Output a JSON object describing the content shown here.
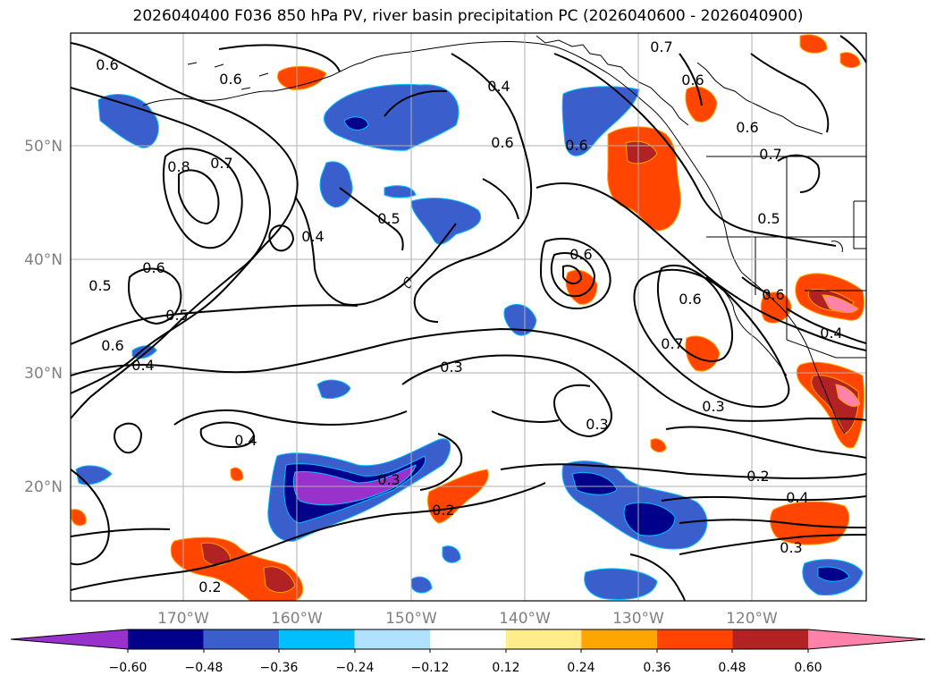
{
  "title": "2026040400 F036 850 hPa PV, river basin precipitation PC (2026040600 - 2026040900)",
  "lat_labels": [
    "50°N",
    "40°N",
    "30°N",
    "20°N"
  ],
  "lon_labels": [
    "170°W",
    "160°W",
    "150°W",
    "140°W",
    "130°W",
    "120°W"
  ],
  "contour_labels": [
    "0.6",
    "0.6",
    "0.7",
    "0.6",
    "0.4",
    "0.6",
    "0.8",
    "0.7",
    "0.4",
    "0.5",
    "0.6",
    "0.5",
    "0.5",
    "0.6",
    "0.4",
    "0.3",
    "0.4",
    "0.3",
    "0.3",
    "0.2",
    "0.6",
    "0.7",
    "0.6",
    "0.3",
    "0.2",
    "0.4",
    "0.3",
    "0.5",
    "0.6",
    "0.4",
    "0.2",
    "0.7",
    "0.6",
    "0.6"
  ],
  "colorbar": {
    "ticks": [
      "−0.60",
      "−0.48",
      "−0.36",
      "−0.24",
      "−0.12",
      "0.12",
      "0.24",
      "0.36",
      "0.48",
      "0.60"
    ],
    "colors": [
      "#9932cc",
      "#00008b",
      "#3a5fcd",
      "#00bfff",
      "#b0e2ff",
      "#ffffff",
      "#ffec8b",
      "#ffa500",
      "#ff4500",
      "#b22222",
      "#ff82ab"
    ]
  }
}
